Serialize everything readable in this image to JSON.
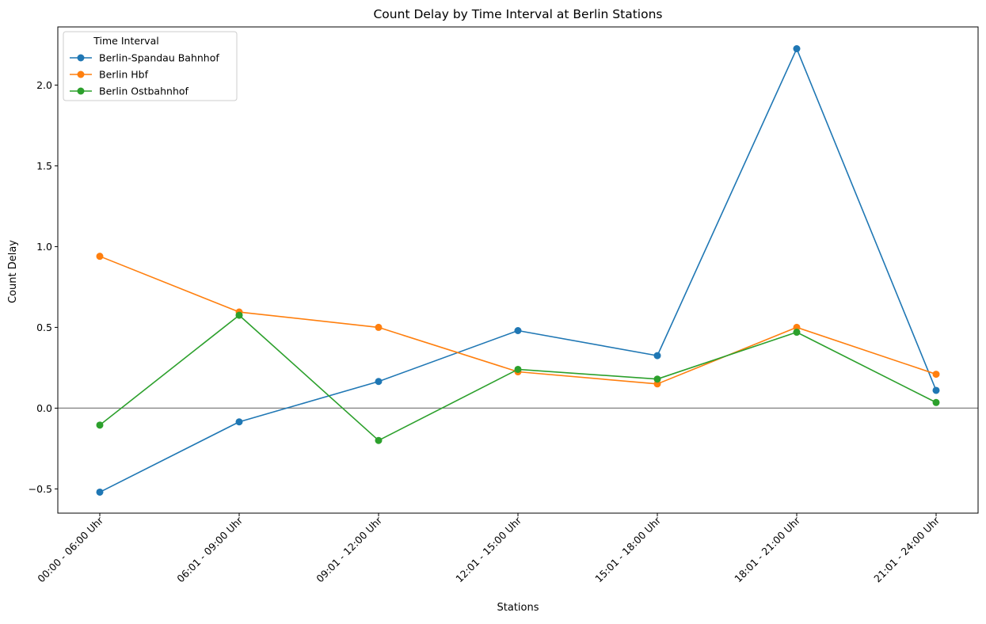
{
  "chart_data": {
    "type": "line",
    "title": "Count Delay by Time Interval at Berlin Stations",
    "xlabel": "Stations",
    "ylabel": "Count Delay",
    "categories": [
      "00:00 - 06:00 Uhr",
      "06:01 - 09:00 Uhr",
      "09:01 - 12:00 Uhr",
      "12:01 - 15:00 Uhr",
      "15:01 - 18:00 Uhr",
      "18:01 - 21:00 Uhr",
      "21:01 - 24:00 Uhr"
    ],
    "yticks": [
      -0.5,
      0.0,
      0.5,
      1.0,
      1.5,
      2.0
    ],
    "ytick_labels": [
      "−0.5",
      "0.0",
      "0.5",
      "1.0",
      "1.5",
      "2.0"
    ],
    "ylim": [
      -0.65,
      2.36
    ],
    "hline": 0,
    "legend": {
      "title": "Time Interval",
      "position": "top-left"
    },
    "series": [
      {
        "name": "Berlin-Spandau Bahnhof",
        "color": "#1f77b4",
        "values": [
          -0.52,
          -0.085,
          0.165,
          0.48,
          0.325,
          2.225,
          0.11
        ]
      },
      {
        "name": "Berlin Hbf",
        "color": "#ff7f0e",
        "values": [
          0.94,
          0.595,
          0.5,
          0.225,
          0.15,
          0.5,
          0.21
        ]
      },
      {
        "name": "Berlin Ostbahnhof",
        "color": "#2ca02c",
        "values": [
          -0.105,
          0.575,
          -0.2,
          0.24,
          0.18,
          0.47,
          0.035
        ]
      }
    ],
    "grid": false
  }
}
